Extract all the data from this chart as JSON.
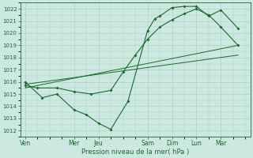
{
  "background_color": "#cce8e0",
  "grid_color": "#aad4cc",
  "line_color": "#1a6b2a",
  "x_labels": [
    "Ven",
    "Mer",
    "Jeu",
    "Sam",
    "Dim",
    "Lun",
    "Mar"
  ],
  "xlabel": "Pression niveau de la mer( hPa )",
  "ylim": [
    1011.5,
    1022.5
  ],
  "yticks": [
    1012,
    1013,
    1014,
    1015,
    1016,
    1017,
    1018,
    1019,
    1020,
    1021,
    1022
  ],
  "x_tick_pos": [
    0,
    2,
    3,
    5,
    6,
    7,
    8
  ],
  "xlim": [
    -0.2,
    9.2
  ],
  "series1_x": [
    0,
    0.7,
    1.3,
    2.0,
    2.5,
    3.0,
    3.5,
    4.2,
    5.0,
    5.3,
    5.5,
    6.0,
    6.5,
    7.0,
    7.5,
    8.0,
    8.7
  ],
  "series1_y": [
    1016.0,
    1014.7,
    1015.0,
    1013.7,
    1013.3,
    1012.6,
    1012.1,
    1014.4,
    1020.2,
    1021.2,
    1021.4,
    1022.1,
    1022.2,
    1022.2,
    1021.4,
    1021.9,
    1020.4
  ],
  "series2_x": [
    0,
    0.5,
    1.3,
    2.0,
    2.7,
    3.5,
    4.0,
    4.5,
    5.0,
    5.5,
    6.0,
    6.5,
    7.0,
    7.5,
    8.0,
    8.7
  ],
  "series2_y": [
    1015.7,
    1015.5,
    1015.5,
    1015.2,
    1015.0,
    1015.3,
    1016.8,
    1018.2,
    1019.5,
    1020.5,
    1021.1,
    1021.6,
    1022.0,
    1021.5,
    1020.5,
    1019.0
  ],
  "trend1_x": [
    0,
    8.7
  ],
  "trend1_y": [
    1015.5,
    1019.0
  ],
  "trend2_x": [
    0,
    8.7
  ],
  "trend2_y": [
    1015.8,
    1018.2
  ]
}
